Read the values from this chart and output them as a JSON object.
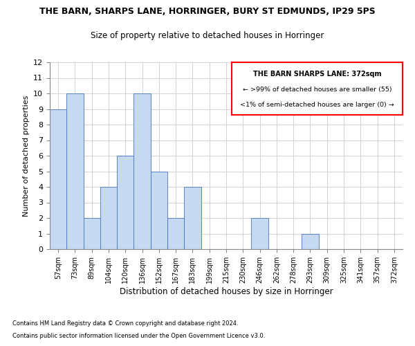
{
  "title1": "THE BARN, SHARPS LANE, HORRINGER, BURY ST EDMUNDS, IP29 5PS",
  "title2": "Size of property relative to detached houses in Horringer",
  "xlabel": "Distribution of detached houses by size in Horringer",
  "ylabel": "Number of detached properties",
  "categories": [
    "57sqm",
    "73sqm",
    "89sqm",
    "104sqm",
    "120sqm",
    "136sqm",
    "152sqm",
    "167sqm",
    "183sqm",
    "199sqm",
    "215sqm",
    "230sqm",
    "246sqm",
    "262sqm",
    "278sqm",
    "293sqm",
    "309sqm",
    "325sqm",
    "341sqm",
    "357sqm",
    "372sqm"
  ],
  "values": [
    9,
    10,
    2,
    4,
    6,
    10,
    5,
    2,
    4,
    0,
    0,
    0,
    2,
    0,
    0,
    1,
    0,
    0,
    0,
    0,
    0
  ],
  "bar_color": "#c5d9f1",
  "bar_edge_color": "#4472c4",
  "ylim": [
    0,
    12
  ],
  "yticks": [
    0,
    1,
    2,
    3,
    4,
    5,
    6,
    7,
    8,
    9,
    10,
    11,
    12
  ],
  "legend_title": "THE BARN SHARPS LANE: 372sqm",
  "legend_line1": "← >99% of detached houses are smaller (55)",
  "legend_line2": "<1% of semi-detached houses are larger (0) →",
  "footer1": "Contains HM Land Registry data © Crown copyright and database right 2024.",
  "footer2": "Contains public sector information licensed under the Open Government Licence v3.0.",
  "grid_color": "#cccccc",
  "background_color": "#ffffff"
}
